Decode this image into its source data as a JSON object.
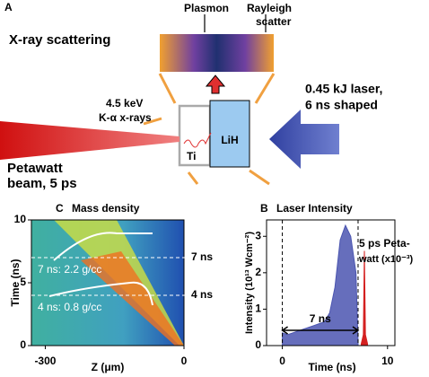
{
  "panel_a": {
    "label": "A",
    "title": "X-ray scattering",
    "plasmon": "Plasmon",
    "rayleigh": [
      "Rayleigh",
      "scatter"
    ],
    "xray_source": [
      "4.5 keV",
      "K-α x-rays"
    ],
    "target": "LiH",
    "foil": "Ti",
    "petawatt": [
      "Petawatt",
      "beam, 5 ps"
    ],
    "laser": [
      "0.45 kJ laser,",
      "6 ns shaped"
    ]
  },
  "panel_c": {
    "label": "C",
    "title": "Mass density",
    "xlabel": "Z (μm)",
    "ylabel": "Time (ns)",
    "xlim": [
      -330,
      0
    ],
    "ylim": [
      0,
      10
    ],
    "xticks": [
      -300,
      0
    ],
    "yticks": [
      0,
      5,
      10
    ],
    "markers": [
      {
        "label": "7 ns",
        "value": 7
      },
      {
        "label": "4 ns",
        "value": 4
      }
    ],
    "annotations": [
      "7 ns: 2.2 g/cc",
      "4 ns: 0.8 g/cc"
    ]
  },
  "panel_b": {
    "label": "B",
    "title": "Laser Intensity",
    "xlabel": "Time (ns)",
    "ylabel": "Intensity (10¹³ Wcm⁻²)",
    "xlim": [
      -1.5,
      10.7
    ],
    "ylim": [
      0,
      3.45
    ],
    "xticks": [
      0,
      10
    ],
    "yticks": [
      0,
      1,
      2,
      3
    ],
    "duration": "7 ns",
    "petawatt": [
      "5 ps Peta-",
      "watt (x10⁻³)"
    ],
    "series": [
      {
        "name": "drive",
        "color": "#4b55b0",
        "x": [
          0,
          0.5,
          1,
          1.5,
          2,
          2.5,
          3,
          3.5,
          4,
          4.5,
          5,
          5.5,
          6,
          6.5,
          7,
          7.2
        ],
        "values": [
          0.35,
          0.3,
          0.35,
          0.4,
          0.45,
          0.5,
          0.55,
          0.6,
          0.65,
          0.9,
          1.6,
          2.9,
          3.3,
          3.0,
          2.0,
          0.1
        ]
      },
      {
        "name": "petawatt",
        "color": "#d42020",
        "x": [
          7.5,
          7.7,
          7.8,
          7.9,
          8.1
        ],
        "values": [
          0.05,
          0.3,
          2.6,
          0.3,
          0.05
        ]
      }
    ]
  }
}
